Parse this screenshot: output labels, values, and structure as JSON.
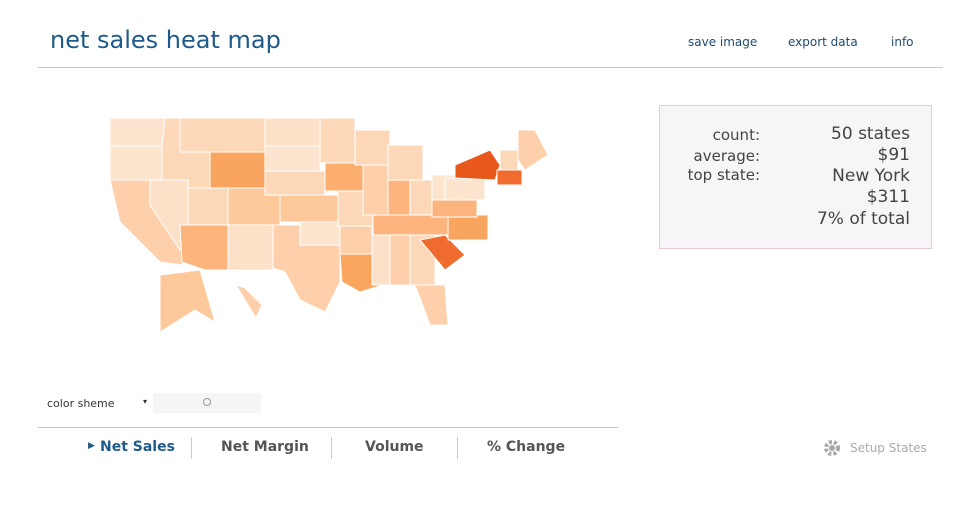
{
  "header": {
    "title": "net sales heat map",
    "links": [
      "save image",
      "export data",
      "info"
    ]
  },
  "summary": {
    "rows": [
      {
        "label": "count:",
        "value": "50 states"
      },
      {
        "label": "average:",
        "value": "$91"
      },
      {
        "label": "top state:",
        "value": "New York"
      }
    ],
    "extra": [
      "$311",
      "7% of total"
    ]
  },
  "controls": {
    "color_scheme": "color sheme"
  },
  "tabs": [
    "Net Sales",
    "Net Margin",
    "Volume",
    "% Change"
  ],
  "setup": "Setup States"
}
